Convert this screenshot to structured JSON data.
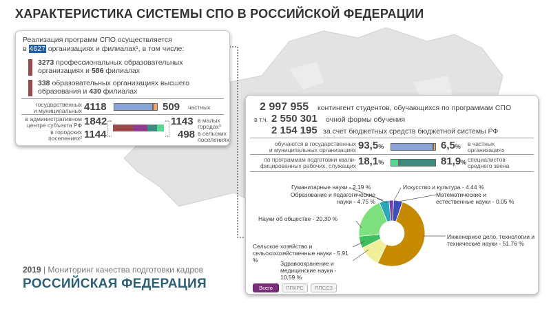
{
  "title": "ХАРАКТЕРИСТИКА СИСТЕМЫ СПО В РОССИЙСКОЙ ФЕДЕРАЦИИ",
  "left_panel": {
    "intro_line1": "Реализация программ СПО осуществляется",
    "intro_prefix": "в",
    "org_count": "4627",
    "intro_suffix": "организациях и филиалах¹, в том числе:",
    "entry1_num1": "3273",
    "entry1_t1": "профессиональных образовательных",
    "entry1_t2": "организациях и",
    "entry1_num2": "586",
    "entry1_t3": "филиалах",
    "entry2_num1": "338",
    "entry2_t1": "образовательных организациях высшего",
    "entry2_t2": "образования и",
    "entry2_num2": "430",
    "entry2_t3": "филиалах",
    "gov_label_1": "государственных",
    "gov_label_2": "и муниципальных",
    "gov_value": "4118",
    "private_value": "509",
    "private_label": "частных",
    "admin_label_1": "в административном",
    "admin_label_2": "центре субъекта РФ",
    "admin_value": "1842",
    "small_value": "1143",
    "small_label_1": "в малых",
    "small_label_2": "городах³",
    "urban_label_1": "в городских",
    "urban_label_2": "поселениях²",
    "urban_value": "1144",
    "rural_value": "498",
    "rural_label_1": "в сельских",
    "rural_label_2": "поселениях"
  },
  "right_panel": {
    "students_total": "2 997 955",
    "students_total_text": "контингент студентов, обучающихся по программам СПО",
    "fulltime_prefix": "в т.ч.",
    "fulltime_value": "2 550 301",
    "fulltime_text": "очной формы обучения",
    "budget_value": "2 154 195",
    "budget_text": "за счет бюджетных средств бюджетной системы РФ",
    "state_label_1": "обучаются в государственных",
    "state_label_2": "и муниципальных организациях",
    "state_pct": "93,5",
    "private_pct": "6,5",
    "private_label_1": "в частных",
    "private_label_2": "организациях",
    "workers_label_1": "по программам подготовки квали-",
    "workers_label_2": "фицированных рабочих, служащих",
    "workers_pct": "18,1",
    "specialists_pct": "81,9",
    "specialists_label_1": "специалистов",
    "specialists_label_2": "среднего звена",
    "pct_sign": "%"
  },
  "tabs": [
    "Всего",
    "ППКРС",
    "ППССЗ"
  ],
  "footer": {
    "year": "2019",
    "separator": "|",
    "subtitle": "Мониторинг качества подготовки кадров",
    "region": "РОССИЙСКАЯ ФЕДЕРАЦИЯ"
  },
  "colors": {
    "bar_blue": "#8aa3d6",
    "bar_orange": "#f0a36a",
    "bar_teal": "#3f8a7e",
    "bar_green": "#56d98f",
    "bar_red": "#9b4a4a",
    "bar_purple": "#8e3c8e",
    "highlight": "#1f5aa6"
  },
  "chart_data": [
    {
      "type": "pie",
      "title": "",
      "series": [
        {
          "label": "Инженерное дело, технологии и технические науки - 51.76 %",
          "value": 51.76,
          "color": "#c68a00"
        },
        {
          "label": "Здравоохранение и медицинские науки - 10.59 %",
          "value": 10.59,
          "color": "#f2ef9a"
        },
        {
          "label": "Сельское хозяйство и сельскохозяйственные науки - 5.91 %",
          "value": 5.91,
          "color": "#3fbf5f"
        },
        {
          "label": "Науки об обществе - 20.30 %",
          "value": 20.3,
          "color": "#7fe07f"
        },
        {
          "label": "Образование и педагогические науки - 4.75 %",
          "value": 4.75,
          "color": "#2aa7b8"
        },
        {
          "label": "Гуманитарные науки - 2.19 %",
          "value": 2.19,
          "color": "#7a3fa8"
        },
        {
          "label": "Искусство и культура - 4.44 %",
          "value": 4.44,
          "color": "#3d4fb8"
        },
        {
          "label": "Математические и естественные науки - 0.05 %",
          "value": 0.05,
          "color": "#4aa0d8"
        }
      ]
    },
    {
      "type": "bar",
      "title": "",
      "categories": [
        "государственных и муниципальных",
        "частных"
      ],
      "values": [
        4118,
        509
      ]
    },
    {
      "type": "bar",
      "title": "",
      "categories": [
        "обучаются в государственных и муниципальных организациях",
        "в частных организациях"
      ],
      "values": [
        93.5,
        6.5
      ]
    },
    {
      "type": "bar",
      "title": "",
      "categories": [
        "по программам подготовки квалифицированных рабочих, служащих",
        "специалистов среднего звена"
      ],
      "values": [
        18.1,
        81.9
      ]
    }
  ]
}
